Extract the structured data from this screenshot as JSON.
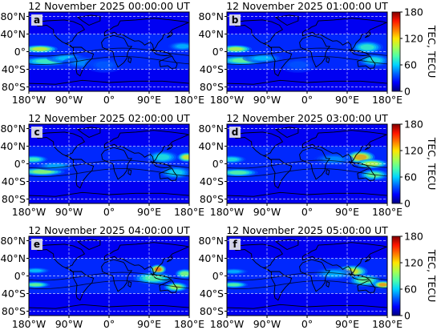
{
  "chart_data": {
    "type": "heatmap",
    "xlim": [
      -180,
      180
    ],
    "ylim": [
      -90,
      90
    ],
    "x_ticks": [
      "180°W",
      "90°W",
      "0°",
      "90°E",
      "180°E"
    ],
    "y_ticks": [
      "80°N",
      "40°N",
      "0°",
      "40°S",
      "80°S"
    ],
    "colorbar": {
      "label": "TEC, TECU",
      "range": [
        0,
        180
      ],
      "ticks": [
        "0",
        "60",
        "120",
        "180"
      ],
      "colors": [
        "#00007f",
        "#0000ff",
        "#0063ff",
        "#00d4ff",
        "#4effa9",
        "#a9ff4e",
        "#ffe600",
        "#ff7a00",
        "#ff1400",
        "#7f0000"
      ]
    },
    "panels": [
      {
        "letter": "a",
        "title": "12 November 2025 00:00:00 UT",
        "blobs": [
          {
            "lon": -155,
            "lat": 6,
            "slon": 22,
            "slat": 5,
            "tec": 118
          },
          {
            "lon": -140,
            "lat": -22,
            "slon": 32,
            "slat": 6,
            "tec": 82
          },
          {
            "lon": -95,
            "lat": -15,
            "slon": 25,
            "slat": 6,
            "tec": 62
          },
          {
            "lon": -60,
            "lat": -25,
            "slon": 25,
            "slat": 8,
            "tec": 50
          },
          {
            "lon": -10,
            "lat": -30,
            "slon": 25,
            "slat": 10,
            "tec": 40
          },
          {
            "lon": 165,
            "lat": 12,
            "slon": 18,
            "slat": 6,
            "tec": 58
          }
        ]
      },
      {
        "letter": "b",
        "title": "12 November 2025 01:00:00 UT",
        "blobs": [
          {
            "lon": -160,
            "lat": 6,
            "slon": 20,
            "slat": 5,
            "tec": 112
          },
          {
            "lon": -145,
            "lat": -20,
            "slon": 30,
            "slat": 6,
            "tec": 92
          },
          {
            "lon": -100,
            "lat": -15,
            "slon": 25,
            "slat": 6,
            "tec": 60
          },
          {
            "lon": 135,
            "lat": 10,
            "slon": 20,
            "slat": 8,
            "tec": 78
          },
          {
            "lon": 150,
            "lat": -20,
            "slon": 20,
            "slat": 8,
            "tec": 72
          },
          {
            "lon": -20,
            "lat": -30,
            "slon": 25,
            "slat": 10,
            "tec": 38
          }
        ]
      },
      {
        "letter": "c",
        "title": "12 November 2025 02:00:00 UT",
        "blobs": [
          {
            "lon": -150,
            "lat": -18,
            "slon": 28,
            "slat": 5,
            "tec": 102
          },
          {
            "lon": -170,
            "lat": 10,
            "slon": 18,
            "slat": 5,
            "tec": 82
          },
          {
            "lon": -120,
            "lat": -5,
            "slon": 25,
            "slat": 6,
            "tec": 55
          },
          {
            "lon": 120,
            "lat": 15,
            "slon": 20,
            "slat": 8,
            "tec": 72
          },
          {
            "lon": 175,
            "lat": 15,
            "slon": 12,
            "slat": 6,
            "tec": 122
          },
          {
            "lon": 150,
            "lat": -20,
            "slon": 20,
            "slat": 8,
            "tec": 68
          }
        ]
      },
      {
        "letter": "d",
        "title": "12 November 2025 03:00:00 UT",
        "blobs": [
          {
            "lon": -155,
            "lat": -20,
            "slon": 25,
            "slat": 5,
            "tec": 88
          },
          {
            "lon": -170,
            "lat": 10,
            "slon": 18,
            "slat": 5,
            "tec": 72
          },
          {
            "lon": 120,
            "lat": 15,
            "slon": 18,
            "slat": 8,
            "tec": 138
          },
          {
            "lon": 145,
            "lat": 0,
            "slon": 20,
            "slat": 6,
            "tec": 112
          },
          {
            "lon": 150,
            "lat": -25,
            "slon": 18,
            "slat": 7,
            "tec": 92
          },
          {
            "lon": 60,
            "lat": 10,
            "slon": 25,
            "slat": 8,
            "tec": 50
          }
        ]
      },
      {
        "letter": "e",
        "title": "12 November 2025 04:00:00 UT",
        "blobs": [
          {
            "lon": -165,
            "lat": -20,
            "slon": 18,
            "slat": 4,
            "tec": 92
          },
          {
            "lon": -165,
            "lat": 12,
            "slon": 18,
            "slat": 4,
            "tec": 62
          },
          {
            "lon": 110,
            "lat": 15,
            "slon": 10,
            "slat": 6,
            "tec": 152
          },
          {
            "lon": 100,
            "lat": -5,
            "slon": 25,
            "slat": 8,
            "tec": 88
          },
          {
            "lon": 150,
            "lat": -25,
            "slon": 15,
            "slat": 6,
            "tec": 108
          },
          {
            "lon": 170,
            "lat": 5,
            "slon": 12,
            "slat": 6,
            "tec": 98
          }
        ]
      },
      {
        "letter": "f",
        "title": "12 November 2025 05:00:00 UT",
        "blobs": [
          {
            "lon": -165,
            "lat": -20,
            "slon": 18,
            "slat": 4,
            "tec": 88
          },
          {
            "lon": -165,
            "lat": 10,
            "slon": 18,
            "slat": 4,
            "tec": 58
          },
          {
            "lon": 100,
            "lat": 10,
            "slon": 20,
            "slat": 8,
            "tec": 122
          },
          {
            "lon": 130,
            "lat": -10,
            "slon": 20,
            "slat": 8,
            "tec": 92
          },
          {
            "lon": 170,
            "lat": -20,
            "slon": 12,
            "slat": 5,
            "tec": 142
          },
          {
            "lon": 60,
            "lat": 5,
            "slon": 25,
            "slat": 8,
            "tec": 58
          }
        ]
      }
    ]
  }
}
